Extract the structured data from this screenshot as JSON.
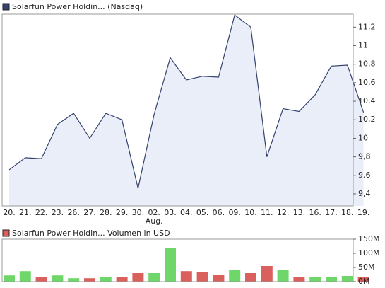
{
  "chart_data": [
    {
      "type": "line",
      "legend": "Solarfun Power Holdin... (Nasdaq)",
      "color": "#33426e",
      "fill": "#e9eef9",
      "categories": [
        "20.",
        "21.",
        "22.",
        "23.",
        "26.",
        "27.",
        "28.",
        "29.",
        "30.",
        "02.",
        "03.",
        "04.",
        "05.",
        "06.",
        "09.",
        "10.",
        "11.",
        "12.",
        "13.",
        "16.",
        "17.",
        "18.",
        "19."
      ],
      "annotations": [
        {
          "text": "Aug.",
          "at": "02."
        }
      ],
      "values": [
        9.66,
        9.79,
        9.78,
        10.15,
        10.27,
        10.0,
        10.27,
        10.2,
        9.46,
        10.26,
        10.87,
        10.63,
        10.67,
        10.66,
        11.33,
        11.2,
        9.8,
        10.32,
        10.29,
        10.47,
        10.78,
        10.79,
        10.28
      ],
      "ylim": [
        9.27,
        11.34
      ],
      "yticks": [
        {
          "value": 9.4,
          "label": "9,4"
        },
        {
          "value": 9.6,
          "label": "9,6"
        },
        {
          "value": 9.8,
          "label": "9,8"
        },
        10,
        {
          "value": 10.2,
          "label": "10,2"
        },
        {
          "value": 10.4,
          "label": "10,4"
        },
        {
          "value": 10.6,
          "label": "10,6"
        },
        {
          "value": 10.8,
          "label": "10,8"
        },
        11,
        {
          "value": 11.2,
          "label": "11,2"
        }
      ]
    },
    {
      "type": "bar",
      "legend": "Solarfun Power Holdin... Volumen in USD",
      "color": "#d9534f",
      "values": [
        22000000,
        37000000,
        17000000,
        22000000,
        12000000,
        12000000,
        15000000,
        15000000,
        30000000,
        30000000,
        120000000,
        37000000,
        35000000,
        25000000,
        40000000,
        30000000,
        55000000,
        40000000,
        17000000,
        17000000,
        17000000,
        20000000,
        17000000
      ],
      "colors": [
        "#6fd66a",
        "#6fd66a",
        "#d9605c",
        "#6fd66a",
        "#6fd66a",
        "#d9605c",
        "#6fd66a",
        "#d9605c",
        "#d9605c",
        "#6fd66a",
        "#6fd66a",
        "#d9605c",
        "#d9605c",
        "#d9605c",
        "#6fd66a",
        "#d9605c",
        "#d9605c",
        "#6fd66a",
        "#d9605c",
        "#6fd66a",
        "#6fd66a",
        "#6fd66a",
        "#d9605c"
      ],
      "ylim": [
        0,
        150000000
      ],
      "yticks": [
        {
          "value": 0,
          "label": "0M"
        },
        {
          "value": 50000000,
          "label": "50M"
        },
        {
          "value": 100000000,
          "label": "100M"
        },
        {
          "value": 150000000,
          "label": "150M"
        }
      ]
    }
  ]
}
